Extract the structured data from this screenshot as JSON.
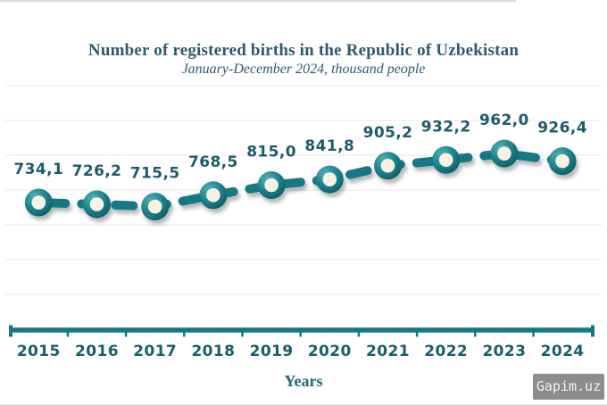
{
  "page": {
    "watermark": "Gapim.uz"
  },
  "chart_data": {
    "type": "line",
    "title": "Number of registered births in the Republic of Uzbekistan",
    "subtitle": "January-December 2024, thousand people",
    "xlabel": "Years",
    "ylabel": "",
    "categories": [
      "2015",
      "2016",
      "2017",
      "2018",
      "2019",
      "2020",
      "2021",
      "2022",
      "2023",
      "2024"
    ],
    "series": [
      {
        "name": "Registered births, thousand people",
        "values": [
          734.1,
          726.2,
          715.5,
          768.5,
          815.0,
          841.8,
          905.2,
          932.2,
          962.0,
          926.4
        ],
        "labels": [
          "734,1",
          "726,2",
          "715,5",
          "768,5",
          "815,0",
          "841,8",
          "905,2",
          "932,2",
          "962,0",
          "926,4"
        ]
      }
    ],
    "legend": false,
    "grid": "horizontal-light",
    "colors": {
      "line": "#147883",
      "marker_ring": "#187e89",
      "marker_center": "#f8f3e1",
      "data_label": "#1c5c6b",
      "axis": "#147883",
      "year_label": "#156069",
      "title": "#2d5a70",
      "gridline": "#ececea",
      "watermark_bg": "#8d8d8d",
      "watermark_text": "#f2f2f2"
    }
  }
}
